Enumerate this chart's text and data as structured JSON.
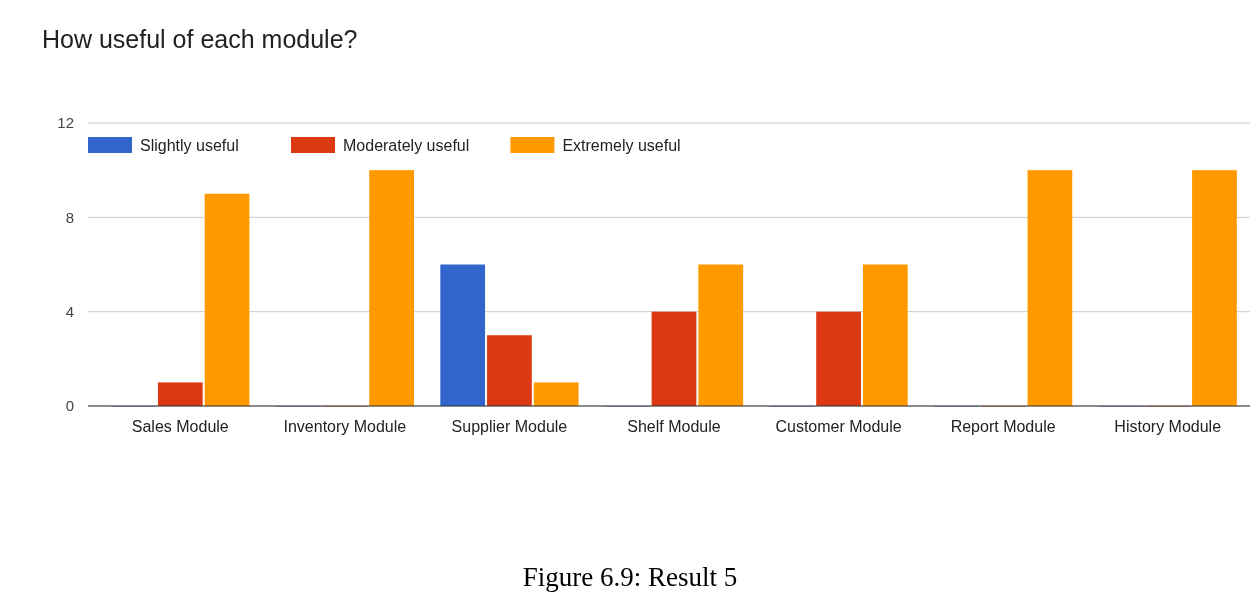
{
  "chart_data": {
    "type": "bar",
    "title": "How useful of each module?",
    "categories": [
      "Sales Module",
      "Inventory Module",
      "Supplier Module",
      "Shelf Module",
      "Customer Module",
      "Report Module",
      "History Module"
    ],
    "series": [
      {
        "name": "Slightly useful",
        "color": "#3366cc",
        "values": [
          0,
          0,
          6,
          0,
          0,
          0,
          0
        ]
      },
      {
        "name": "Moderately useful",
        "color": "#dc3912",
        "values": [
          1,
          0,
          3,
          4,
          4,
          0,
          0
        ]
      },
      {
        "name": "Extremely useful",
        "color": "#ff9900",
        "values": [
          9,
          10,
          1,
          6,
          6,
          10,
          10
        ]
      }
    ],
    "ylim": [
      0,
      12
    ],
    "yticks": [
      0,
      4,
      8,
      12
    ],
    "grid": "y",
    "legend": "top left",
    "annotations": [
      "Figure 6.9: Result 5"
    ]
  }
}
